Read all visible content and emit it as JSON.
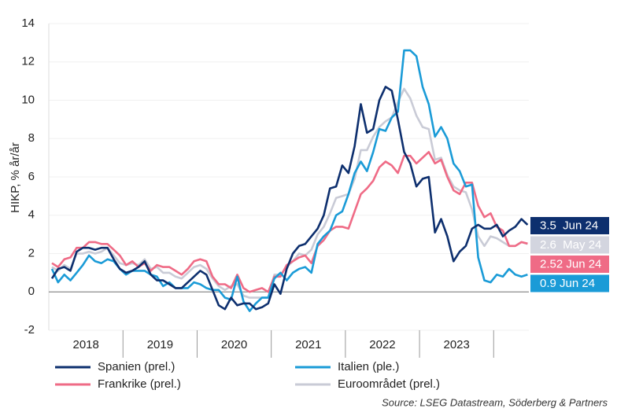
{
  "chart_data": {
    "type": "line",
    "y_label": "HIKP, % år/år",
    "source": "Source: LSEG Datastream, Söderberg & Partners",
    "categories": [
      null,
      null,
      null,
      null,
      null,
      null,
      "2018",
      null,
      null,
      null,
      null,
      null,
      null,
      null,
      null,
      null,
      null,
      null,
      "2019",
      null,
      null,
      null,
      null,
      null,
      null,
      null,
      null,
      null,
      null,
      null,
      "2020",
      null,
      null,
      null,
      null,
      null,
      null,
      null,
      null,
      null,
      null,
      null,
      "2021",
      null,
      null,
      null,
      null,
      null,
      null,
      null,
      null,
      null,
      null,
      null,
      "2022",
      null,
      null,
      null,
      null,
      null,
      null,
      null,
      null,
      null,
      null,
      null,
      "2023",
      null,
      null,
      null,
      null,
      null,
      null,
      null,
      null,
      null,
      null,
      null
    ],
    "ylim": [
      -2,
      14
    ],
    "yticks": [
      -2,
      0,
      2,
      4,
      6,
      8,
      10,
      12,
      14
    ],
    "series": [
      {
        "name": "Spanien (prel.)",
        "color": "#0d2f6e",
        "values": [
          0.7,
          1.2,
          1.3,
          1.1,
          2.1,
          2.3,
          2.3,
          2.2,
          2.3,
          2.3,
          1.7,
          1.2,
          1.0,
          1.1,
          1.3,
          1.6,
          0.9,
          0.6,
          0.6,
          0.4,
          0.2,
          0.2,
          0.5,
          0.8,
          1.1,
          0.9,
          0.1,
          -0.7,
          -0.9,
          -0.3,
          -0.7,
          -0.6,
          -0.6,
          -0.9,
          -0.8,
          -0.6,
          0.4,
          -0.1,
          1.2,
          2.0,
          2.4,
          2.5,
          2.9,
          3.3,
          4.0,
          5.4,
          5.5,
          6.6,
          6.2,
          7.6,
          9.8,
          8.3,
          8.5,
          10.0,
          10.7,
          10.5,
          9.0,
          7.3,
          6.7,
          5.5,
          5.9,
          6.0,
          3.1,
          3.8,
          2.9,
          1.6,
          2.1,
          2.4,
          3.3,
          3.5,
          3.3,
          3.3,
          3.5,
          2.9,
          3.2,
          3.4,
          3.8,
          3.5
        ]
      },
      {
        "name": "Italien (ple.)",
        "color": "#1a9bd7",
        "values": [
          1.2,
          0.5,
          0.9,
          0.6,
          1.0,
          1.4,
          1.9,
          1.6,
          1.5,
          1.7,
          1.6,
          1.2,
          0.9,
          1.1,
          1.1,
          1.1,
          0.9,
          0.8,
          0.3,
          0.5,
          0.2,
          0.2,
          0.2,
          0.5,
          0.4,
          0.2,
          0.1,
          0.1,
          -0.3,
          -0.4,
          0.8,
          -0.5,
          -1.0,
          -0.6,
          -0.3,
          -0.3,
          0.7,
          1.0,
          0.6,
          1.0,
          1.2,
          1.3,
          1.0,
          2.5,
          2.9,
          3.2,
          4.0,
          4.2,
          5.1,
          6.2,
          6.8,
          6.3,
          7.3,
          8.5,
          8.4,
          9.1,
          9.4,
          12.6,
          12.6,
          12.3,
          10.7,
          9.8,
          8.1,
          8.6,
          8.0,
          6.7,
          6.3,
          5.5,
          5.6,
          1.8,
          0.6,
          0.5,
          0.9,
          0.8,
          1.2,
          0.9,
          0.8,
          0.9
        ]
      },
      {
        "name": "Frankrike (prel.)",
        "color": "#ef6b86",
        "values": [
          1.5,
          1.3,
          1.7,
          1.8,
          2.3,
          2.3,
          2.6,
          2.6,
          2.5,
          2.5,
          2.2,
          1.9,
          1.4,
          1.6,
          1.3,
          1.5,
          1.1,
          1.4,
          1.3,
          1.3,
          1.1,
          0.9,
          1.2,
          1.6,
          1.7,
          1.6,
          0.8,
          0.4,
          0.4,
          0.2,
          0.9,
          0.2,
          0.0,
          0.1,
          0.2,
          0.0,
          0.8,
          0.8,
          1.4,
          1.6,
          1.8,
          1.9,
          1.5,
          2.4,
          2.7,
          3.2,
          3.4,
          3.4,
          3.3,
          4.2,
          5.1,
          5.4,
          5.8,
          6.5,
          6.8,
          6.6,
          6.2,
          7.1,
          7.1,
          6.7,
          7.0,
          7.3,
          6.7,
          6.9,
          6.0,
          5.3,
          5.1,
          5.7,
          5.7,
          4.5,
          3.9,
          4.1,
          3.4,
          3.2,
          2.4,
          2.4,
          2.6,
          2.52
        ]
      },
      {
        "name": "Euroområdet (prel.)",
        "color": "#c9cbd6",
        "values": [
          1.3,
          1.1,
          1.4,
          1.2,
          2.0,
          2.0,
          2.1,
          2.0,
          2.1,
          2.3,
          1.9,
          1.5,
          1.4,
          1.5,
          1.4,
          1.7,
          1.2,
          1.3,
          1.0,
          1.0,
          0.8,
          0.7,
          1.0,
          1.3,
          1.4,
          1.2,
          0.7,
          0.3,
          0.1,
          0.3,
          0.4,
          -0.2,
          -0.3,
          -0.3,
          -0.3,
          -0.3,
          0.9,
          0.9,
          1.3,
          1.6,
          2.0,
          1.9,
          2.2,
          3.0,
          3.4,
          4.1,
          4.9,
          5.0,
          5.1,
          5.9,
          7.4,
          7.4,
          8.1,
          8.6,
          8.9,
          9.1,
          9.9,
          10.6,
          10.1,
          9.2,
          8.6,
          8.5,
          6.9,
          7.0,
          6.1,
          5.5,
          5.3,
          5.2,
          4.3,
          2.9,
          2.4,
          2.9,
          2.8,
          2.6,
          2.4,
          2.4,
          2.6,
          2.5
        ]
      }
    ],
    "annotations": [
      {
        "text": "3.5  Jun 24",
        "color": "#0d2f6e"
      },
      {
        "text": "2.6  May 24",
        "color": "#d3d5df"
      },
      {
        "text": "2.52 Jun 24",
        "color": "#ef6b86"
      },
      {
        "text": "0.9 Jun 24",
        "color": "#1a9bd7"
      }
    ]
  }
}
